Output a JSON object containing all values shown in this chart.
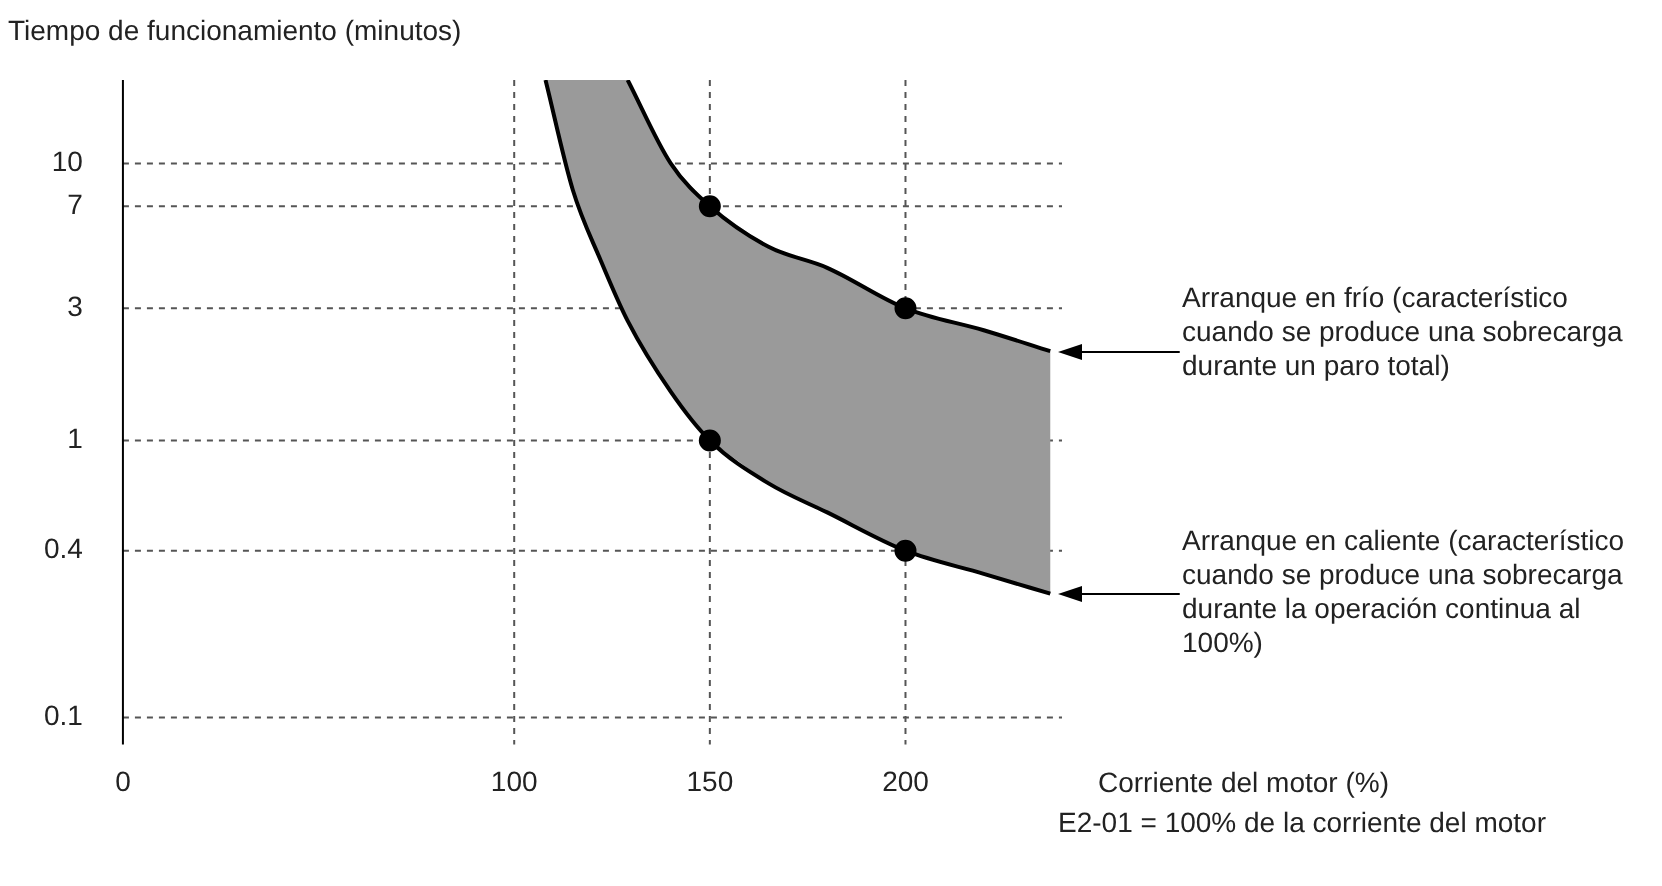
{
  "chart_data": {
    "type": "line",
    "ylabel": "Tiempo de funcionamiento (minutos)",
    "xlabel": "Corriente del motor (%)",
    "log": "y",
    "grid": true,
    "legend": false,
    "marker": "none",
    "xlim": [
      0,
      240
    ],
    "xticks": [
      0,
      100,
      150,
      200
    ],
    "ylim": [
      0.08,
      20
    ],
    "yticks": [
      0.1,
      0.4,
      1,
      3,
      7,
      10
    ],
    "x": [
      108,
      115,
      122,
      129,
      140,
      150,
      165,
      180,
      200,
      220,
      237
    ],
    "series": [
      {
        "color": "#000000",
        "values": [
          null,
          null,
          null,
          20,
          10,
          7,
          5,
          4.2,
          3,
          2.5,
          2.1
        ]
      },
      {
        "color": "#000000",
        "values": [
          20,
          8,
          4.5,
          2.7,
          1.5,
          1,
          0.7,
          0.55,
          0.4,
          0.33,
          0.28
        ],
        "lower": [
          20,
          8,
          4.5,
          2.7,
          1.5,
          1,
          0.7,
          0.55,
          0.4,
          0.33,
          0.28
        ],
        "upper": [
          20,
          20,
          20,
          20,
          10,
          7,
          5,
          4.2,
          3,
          2.5,
          2.1
        ]
      },
      {
        "type": "scatter",
        "color": "#000000",
        "marker": "circle",
        "values": [
          null,
          null,
          null,
          null,
          null,
          7,
          null,
          null,
          3,
          null,
          null
        ]
      },
      {
        "type": "scatter",
        "color": "#000000",
        "marker": "circle",
        "values": [
          null,
          null,
          null,
          null,
          null,
          1,
          null,
          null,
          0.4,
          null,
          null
        ]
      }
    ],
    "annotations": [
      "Arranque en frío (característico cuando se produce una sobrecarga durante un paro total)",
      "Arranque en caliente (característico cuando se produce una sobrecarga durante la operación continua al 100%)",
      "E2-01 = 100% de la corriente del motor"
    ]
  }
}
